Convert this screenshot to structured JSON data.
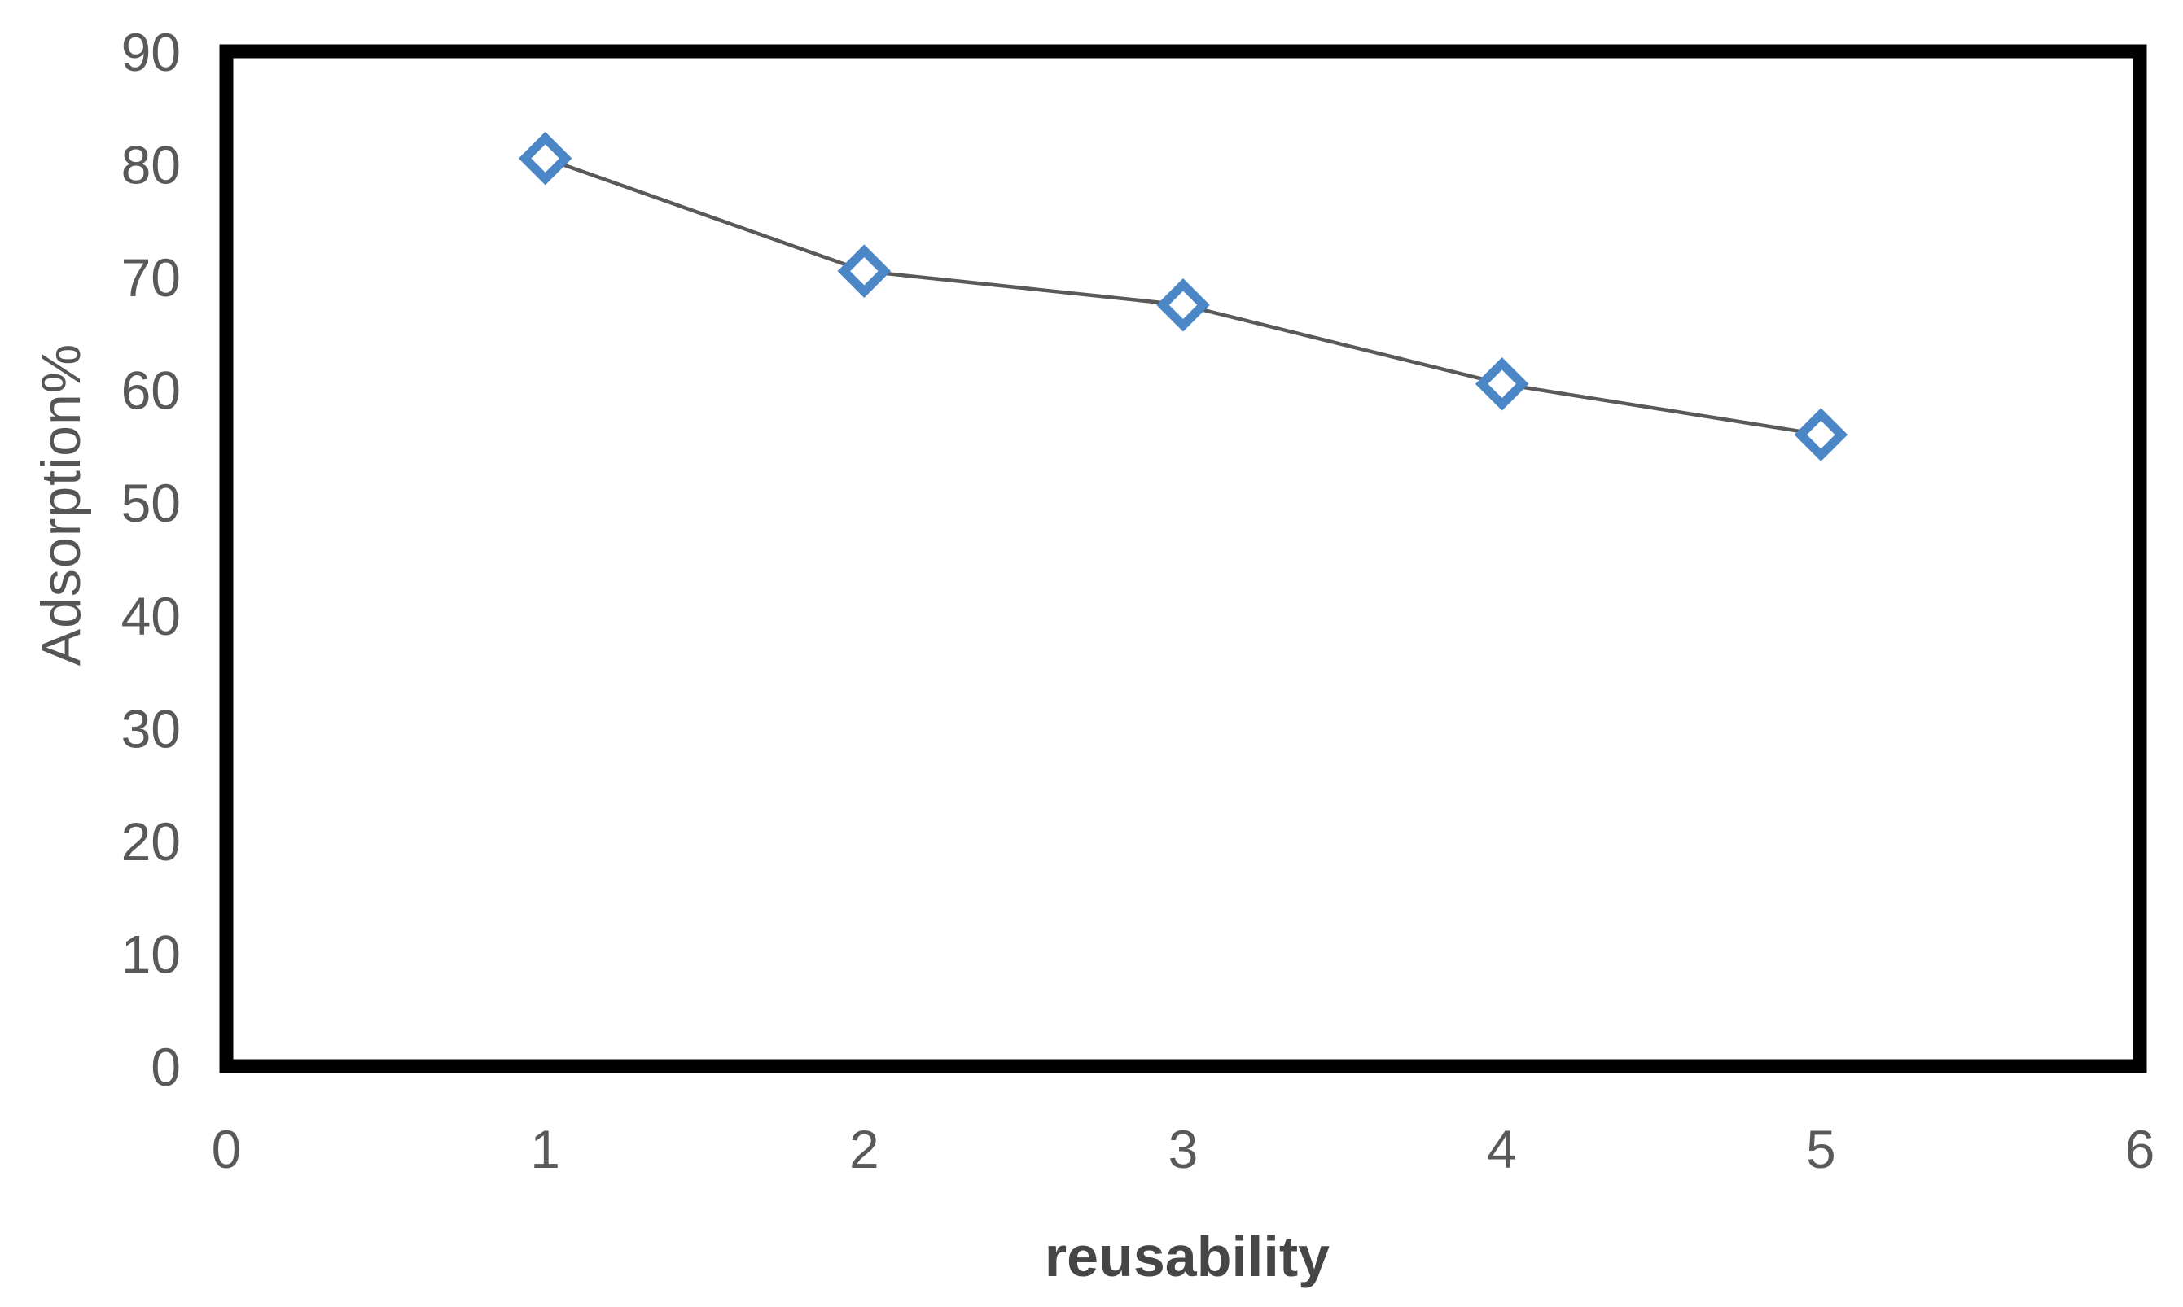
{
  "chart_data": {
    "type": "line",
    "title": "",
    "xlabel": "reusability",
    "ylabel": "Adsorption%",
    "x": [
      1,
      2,
      3,
      4,
      5
    ],
    "series": [
      {
        "name": "Adsorption%",
        "values": [
          80.5,
          70.5,
          67.5,
          60.5,
          56
        ]
      }
    ],
    "xlim": [
      0,
      6
    ],
    "ylim": [
      0,
      90
    ],
    "x_ticks": [
      "0",
      "1",
      "2",
      "3",
      "4",
      "5",
      "6"
    ],
    "y_ticks": [
      "0",
      "10",
      "20",
      "30",
      "40",
      "50",
      "60",
      "70",
      "80",
      "90"
    ],
    "grid": false,
    "legend_position": "none",
    "marker_style": "open-diamond",
    "colors": {
      "marker": "#4b86c6",
      "marker_fill": "#ffffff",
      "line": "#595959",
      "tick_labels": "#595959",
      "y_axis_title": "#555555",
      "x_axis_title": "#464646",
      "plot_border": "#000000",
      "background": "#ffffff"
    }
  }
}
